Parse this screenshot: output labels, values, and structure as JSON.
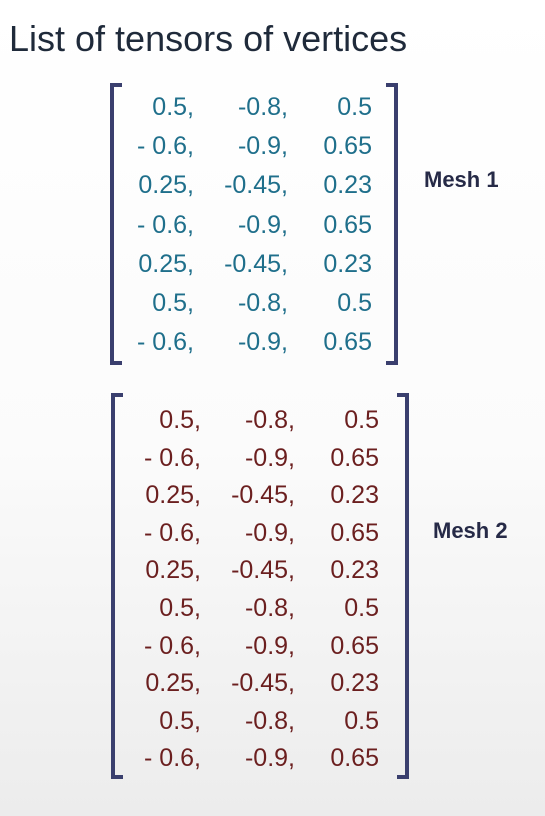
{
  "title": "List of tensors of vertices",
  "colors": {
    "title": "#1f2a3a",
    "bracket": "#3a3f6e",
    "label": "#262a47",
    "mesh1": "#1f6f8b",
    "mesh2": "#6b1f1f"
  },
  "meshes": [
    {
      "label": "Mesh 1",
      "rows": [
        [
          "0.5,",
          "-0.8,",
          "0.5"
        ],
        [
          "- 0.6,",
          "-0.9,",
          "0.65"
        ],
        [
          "0.25,",
          "-0.45,",
          "0.23"
        ],
        [
          "- 0.6,",
          "-0.9,",
          "0.65"
        ],
        [
          "0.25,",
          "-0.45,",
          "0.23"
        ],
        [
          "0.5,",
          "-0.8,",
          "0.5"
        ],
        [
          "- 0.6,",
          "-0.9,",
          "0.65"
        ]
      ]
    },
    {
      "label": "Mesh 2",
      "rows": [
        [
          "0.5,",
          "-0.8,",
          "0.5"
        ],
        [
          "- 0.6,",
          "-0.9,",
          "0.65"
        ],
        [
          "0.25,",
          "-0.45,",
          "0.23"
        ],
        [
          "- 0.6,",
          "-0.9,",
          "0.65"
        ],
        [
          "0.25,",
          "-0.45,",
          "0.23"
        ],
        [
          "0.5,",
          "-0.8,",
          "0.5"
        ],
        [
          "- 0.6,",
          "-0.9,",
          "0.65"
        ],
        [
          "0.25,",
          "-0.45,",
          "0.23"
        ],
        [
          "0.5,",
          "-0.8,",
          "0.5"
        ],
        [
          "- 0.6,",
          "-0.9,",
          "0.65"
        ]
      ]
    }
  ]
}
